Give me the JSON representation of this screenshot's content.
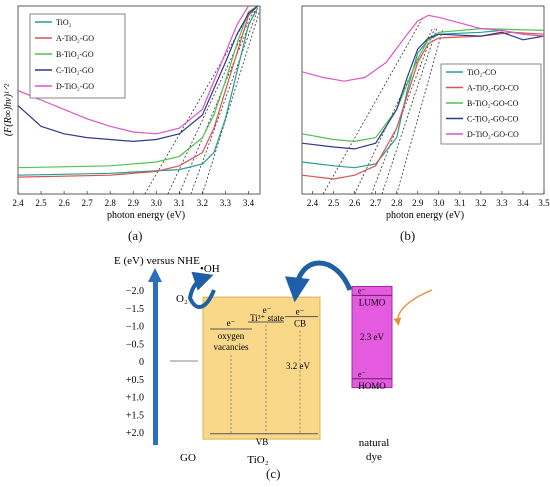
{
  "panels": {
    "a": "(a)",
    "b": "(b)",
    "c": "(c)"
  },
  "chart_data": [
    {
      "type": "line",
      "panel": "(a)",
      "xlabel": "photon energy (eV)",
      "ylabel": "(F(R∞)hν)¹ᐟ²",
      "xlim": [
        2.4,
        3.45
      ],
      "ylim": [
        0,
        1
      ],
      "x_ticks": [
        "2.4",
        "2.5",
        "2.6",
        "2.7",
        "2.8",
        "2.9",
        "3.0",
        "3.1",
        "3.2",
        "3.3",
        "3.4"
      ],
      "grid": false,
      "legend_position": "top-left",
      "series": [
        {
          "name": "TiO₂",
          "color": "#2a9d8f",
          "points": [
            [
              2.4,
              0.1
            ],
            [
              2.8,
              0.11
            ],
            [
              3.1,
              0.13
            ],
            [
              3.2,
              0.16
            ],
            [
              3.25,
              0.22
            ],
            [
              3.3,
              0.4
            ],
            [
              3.35,
              0.65
            ],
            [
              3.4,
              0.9
            ],
            [
              3.44,
              0.99
            ]
          ]
        },
        {
          "name": "A-TiO₂-GO",
          "color": "#d9534f",
          "points": [
            [
              2.4,
              0.09
            ],
            [
              2.8,
              0.1
            ],
            [
              3.0,
              0.12
            ],
            [
              3.1,
              0.15
            ],
            [
              3.2,
              0.22
            ],
            [
              3.25,
              0.35
            ],
            [
              3.3,
              0.55
            ],
            [
              3.35,
              0.75
            ],
            [
              3.4,
              0.95
            ],
            [
              3.44,
              1.0
            ]
          ]
        },
        {
          "name": "B-TiO₂-GO",
          "color": "#4fc24f",
          "points": [
            [
              2.4,
              0.14
            ],
            [
              2.8,
              0.15
            ],
            [
              3.0,
              0.17
            ],
            [
              3.1,
              0.2
            ],
            [
              3.2,
              0.3
            ],
            [
              3.25,
              0.42
            ],
            [
              3.3,
              0.6
            ],
            [
              3.35,
              0.8
            ],
            [
              3.4,
              0.97
            ],
            [
              3.44,
              1.0
            ]
          ]
        },
        {
          "name": "C-TiO₂-GO",
          "color": "#2e3a87",
          "points": [
            [
              2.4,
              0.47
            ],
            [
              2.5,
              0.36
            ],
            [
              2.6,
              0.32
            ],
            [
              2.7,
              0.3
            ],
            [
              2.8,
              0.29
            ],
            [
              2.9,
              0.28
            ],
            [
              3.0,
              0.29
            ],
            [
              3.1,
              0.32
            ],
            [
              3.2,
              0.42
            ],
            [
              3.3,
              0.7
            ],
            [
              3.35,
              0.85
            ],
            [
              3.4,
              0.96
            ],
            [
              3.44,
              1.0
            ]
          ]
        },
        {
          "name": "D-TiO₂-GO",
          "color": "#e055c8",
          "points": [
            [
              2.4,
              0.55
            ],
            [
              2.5,
              0.5
            ],
            [
              2.6,
              0.45
            ],
            [
              2.7,
              0.4
            ],
            [
              2.8,
              0.36
            ],
            [
              2.9,
              0.33
            ],
            [
              3.0,
              0.32
            ],
            [
              3.1,
              0.35
            ],
            [
              3.2,
              0.45
            ],
            [
              3.3,
              0.75
            ],
            [
              3.35,
              0.9
            ],
            [
              3.4,
              1.0
            ]
          ]
        }
      ],
      "tangents": [
        {
          "from": [
            2.95,
            0.0
          ],
          "to": [
            3.4,
            0.95
          ]
        },
        {
          "from": [
            3.05,
            0.0
          ],
          "to": [
            3.42,
            0.97
          ]
        },
        {
          "from": [
            3.1,
            0.0
          ],
          "to": [
            3.43,
            0.98
          ]
        },
        {
          "from": [
            3.15,
            0.0
          ],
          "to": [
            3.44,
            0.98
          ]
        },
        {
          "from": [
            3.2,
            0.0
          ],
          "to": [
            3.45,
            0.98
          ]
        }
      ]
    },
    {
      "type": "line",
      "panel": "(b)",
      "xlabel": "photon energy (eV)",
      "xlim": [
        2.35,
        3.5
      ],
      "ylim": [
        0,
        1
      ],
      "x_ticks": [
        "2.4",
        "2.5",
        "2.6",
        "2.7",
        "2.8",
        "2.9",
        "3.0",
        "3.1",
        "3.2",
        "3.3",
        "3.4",
        "3.5"
      ],
      "grid": false,
      "legend_position": "bottom-right",
      "series": [
        {
          "name": "TiO₂-CO",
          "color": "#2a9d8f",
          "points": [
            [
              2.35,
              0.17
            ],
            [
              2.5,
              0.15
            ],
            [
              2.6,
              0.14
            ],
            [
              2.7,
              0.16
            ],
            [
              2.8,
              0.3
            ],
            [
              2.85,
              0.55
            ],
            [
              2.9,
              0.75
            ],
            [
              2.95,
              0.82
            ],
            [
              3.0,
              0.85
            ],
            [
              3.2,
              0.86
            ],
            [
              3.3,
              0.87
            ],
            [
              3.4,
              0.85
            ],
            [
              3.5,
              0.84
            ]
          ]
        },
        {
          "name": "A-TiO₂-GO-CO",
          "color": "#d9534f",
          "points": [
            [
              2.35,
              0.1
            ],
            [
              2.5,
              0.08
            ],
            [
              2.6,
              0.1
            ],
            [
              2.7,
              0.15
            ],
            [
              2.8,
              0.35
            ],
            [
              2.9,
              0.7
            ],
            [
              2.95,
              0.8
            ],
            [
              3.0,
              0.83
            ],
            [
              3.2,
              0.84
            ],
            [
              3.35,
              0.86
            ],
            [
              3.5,
              0.85
            ]
          ]
        },
        {
          "name": "B-TiO₂-GO-CO",
          "color": "#4fc24f",
          "points": [
            [
              2.35,
              0.32
            ],
            [
              2.5,
              0.29
            ],
            [
              2.6,
              0.28
            ],
            [
              2.7,
              0.3
            ],
            [
              2.8,
              0.45
            ],
            [
              2.9,
              0.72
            ],
            [
              2.95,
              0.82
            ],
            [
              3.0,
              0.86
            ],
            [
              3.2,
              0.88
            ],
            [
              3.5,
              0.87
            ]
          ]
        },
        {
          "name": "C-TiO₂-GO-CO",
          "color": "#2e3a87",
          "points": [
            [
              2.35,
              0.27
            ],
            [
              2.5,
              0.25
            ],
            [
              2.6,
              0.24
            ],
            [
              2.7,
              0.27
            ],
            [
              2.8,
              0.45
            ],
            [
              2.85,
              0.62
            ],
            [
              2.9,
              0.77
            ],
            [
              2.95,
              0.83
            ],
            [
              3.0,
              0.85
            ],
            [
              3.2,
              0.84
            ],
            [
              3.3,
              0.86
            ],
            [
              3.4,
              0.82
            ],
            [
              3.5,
              0.84
            ]
          ]
        },
        {
          "name": "D-TiO₂-GO-CO",
          "color": "#e055c8",
          "points": [
            [
              2.35,
              0.65
            ],
            [
              2.45,
              0.62
            ],
            [
              2.55,
              0.6
            ],
            [
              2.65,
              0.62
            ],
            [
              2.75,
              0.7
            ],
            [
              2.85,
              0.85
            ],
            [
              2.9,
              0.92
            ],
            [
              2.95,
              0.95
            ],
            [
              3.0,
              0.94
            ],
            [
              3.1,
              0.91
            ],
            [
              3.2,
              0.88
            ],
            [
              3.3,
              0.87
            ],
            [
              3.4,
              0.85
            ],
            [
              3.5,
              0.84
            ]
          ]
        }
      ],
      "tangents": [
        {
          "from": [
            2.45,
            0.0
          ],
          "to": [
            2.92,
            0.93
          ]
        },
        {
          "from": [
            2.6,
            0.0
          ],
          "to": [
            2.97,
            0.88
          ]
        },
        {
          "from": [
            2.68,
            0.0
          ],
          "to": [
            2.98,
            0.88
          ]
        },
        {
          "from": [
            2.73,
            0.0
          ],
          "to": [
            2.99,
            0.88
          ]
        },
        {
          "from": [
            2.8,
            0.0
          ],
          "to": [
            3.02,
            0.88
          ]
        }
      ]
    },
    {
      "type": "diagram",
      "panel": "(c)",
      "ylabel": "E (eV) versus NHE",
      "axis_ticks": [
        "−2.0",
        "−1.5",
        "−1.0",
        "−0.5",
        "0",
        "+0.5",
        "+1.0",
        "+1.5",
        "+2.0"
      ],
      "axis_tick_values": [
        -2.0,
        -1.5,
        -1.0,
        -0.5,
        0,
        0.5,
        1.0,
        1.5,
        2.0
      ],
      "go_label": "GO",
      "tio2_label": "TiO₂",
      "dye_label_line1": "natural",
      "dye_label_line2": "dye",
      "oh_label": "•OH",
      "o2_label": "O₂",
      "oxygen_vacancies": {
        "electron": "e⁻",
        "line1": "oxygen",
        "line2": "vacancies",
        "level_ev": -0.9
      },
      "ti3_state": {
        "electron": "e⁻",
        "label": "Ti³⁺ state",
        "level_ev": -1.1
      },
      "cb": {
        "electron": "e⁻",
        "label": "CB",
        "level_ev": -1.25
      },
      "vb": {
        "label": "VB",
        "level_ev": 2.05
      },
      "gap_tio2": "3.2 eV",
      "go_level_ev": 0,
      "lumo": {
        "electron": "e⁻",
        "label": "LUMO",
        "level_ev": -1.85
      },
      "homo": {
        "electron": "e⁻",
        "label": "HOMO",
        "level_ev": 0.5
      },
      "gap_dye": "2.3 eV",
      "colors": {
        "tio2_fill": "#f9d889",
        "tio2_stroke": "#d9b44a",
        "dye_fill": "#e45be0",
        "dye_stroke": "#9a2f9a",
        "arrow_blue": "#1f5fa8",
        "light_orange": "#f08a33"
      }
    }
  ]
}
